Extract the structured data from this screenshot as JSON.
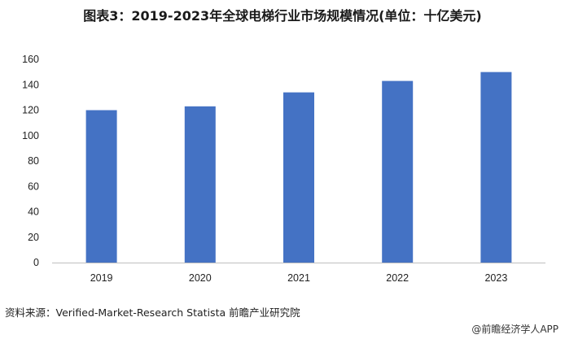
{
  "title": "图表3：2019-2023年全球电梯行业市场规模情况(单位：十亿美元)",
  "source": "资料来源：Verified-Market-Research  Statista  前瞻产业研究院",
  "credit": "@前瞻经济学人APP",
  "colors": {
    "bar": "#4472C4",
    "axis": "#bfbfbf",
    "text": "#222222"
  },
  "chart_data": {
    "type": "bar",
    "categories": [
      "2019",
      "2020",
      "2021",
      "2022",
      "2023"
    ],
    "values": [
      120,
      123,
      134,
      143,
      150
    ],
    "ylim": [
      0,
      160
    ],
    "yticks": [
      0,
      20,
      40,
      60,
      80,
      100,
      120,
      140,
      160
    ],
    "xlabel": "",
    "ylabel": "",
    "grid": false,
    "legend": "none"
  }
}
